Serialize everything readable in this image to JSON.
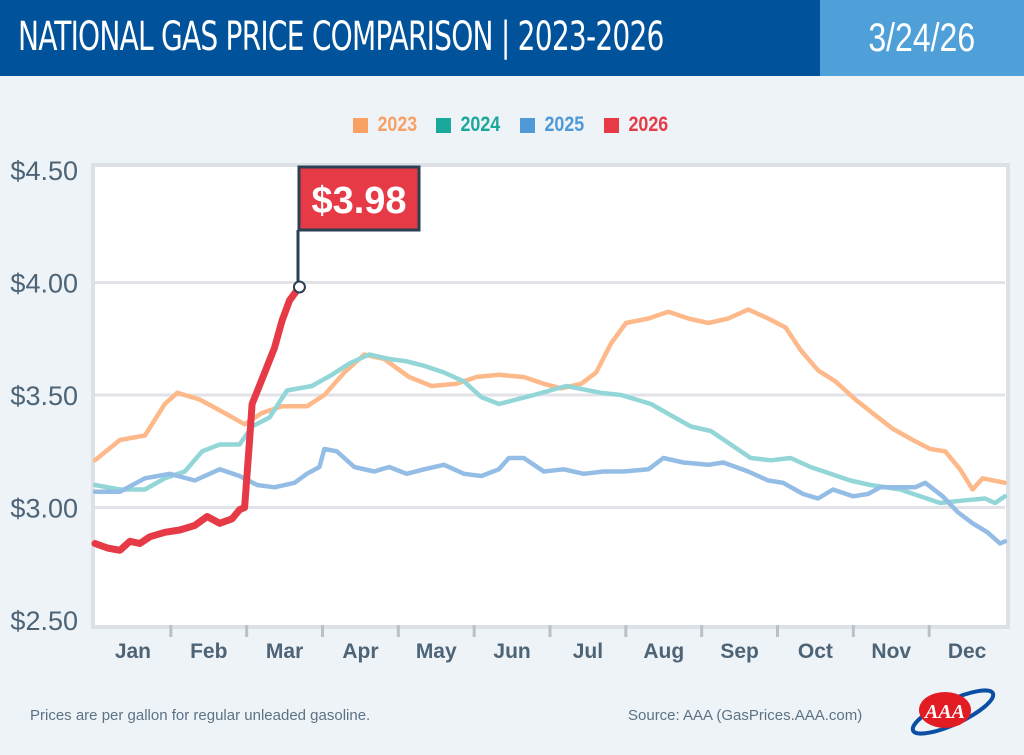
{
  "header": {
    "title": "NATIONAL GAS PRICE COMPARISON | 2023-2026",
    "date": "3/24/26"
  },
  "colors": {
    "header_bg": "#00529b",
    "date_bg": "#4fa0d9",
    "callout": "#e63b47"
  },
  "callout": {
    "label": "$3.98"
  },
  "footer": {
    "note": "Prices are per gallon for regular unleaded gasoline.",
    "source": "Source: AAA (GasPrices.AAA.com)",
    "logo_text": "AAA"
  },
  "chart_data": {
    "type": "line",
    "title": "",
    "xlabel": "",
    "ylabel": "",
    "ylim": [
      2.5,
      4.5
    ],
    "grid": true,
    "legend_placement": "top",
    "yticks": [
      "$4.50",
      "$4.00",
      "$3.50",
      "$3.00",
      "$2.50"
    ],
    "ytick_values": [
      4.5,
      4.0,
      3.5,
      3.0,
      2.5
    ],
    "months": [
      "Jan",
      "Feb",
      "Mar",
      "Apr",
      "May",
      "Jun",
      "Jul",
      "Aug",
      "Sep",
      "Oct",
      "Nov",
      "Dec"
    ],
    "x_unit": "day of year",
    "series": [
      {
        "name": "2023",
        "color": "#fdb98a",
        "legend_color": "#f9a064",
        "points": [
          [
            0,
            3.21
          ],
          [
            10,
            3.3
          ],
          [
            20,
            3.32
          ],
          [
            28,
            3.46
          ],
          [
            33,
            3.51
          ],
          [
            42,
            3.48
          ],
          [
            52,
            3.42
          ],
          [
            60,
            3.37
          ],
          [
            67,
            3.42
          ],
          [
            75,
            3.45
          ],
          [
            85,
            3.45
          ],
          [
            92,
            3.5
          ],
          [
            100,
            3.6
          ],
          [
            108,
            3.68
          ],
          [
            116,
            3.66
          ],
          [
            126,
            3.58
          ],
          [
            135,
            3.54
          ],
          [
            145,
            3.55
          ],
          [
            153,
            3.58
          ],
          [
            162,
            3.59
          ],
          [
            172,
            3.58
          ],
          [
            180,
            3.55
          ],
          [
            187,
            3.53
          ],
          [
            195,
            3.55
          ],
          [
            201,
            3.6
          ],
          [
            207,
            3.73
          ],
          [
            213,
            3.82
          ],
          [
            222,
            3.84
          ],
          [
            230,
            3.87
          ],
          [
            238,
            3.84
          ],
          [
            246,
            3.82
          ],
          [
            254,
            3.84
          ],
          [
            262,
            3.88
          ],
          [
            270,
            3.84
          ],
          [
            277,
            3.8
          ],
          [
            283,
            3.7
          ],
          [
            290,
            3.61
          ],
          [
            297,
            3.56
          ],
          [
            305,
            3.48
          ],
          [
            313,
            3.41
          ],
          [
            320,
            3.35
          ],
          [
            328,
            3.3
          ],
          [
            335,
            3.26
          ],
          [
            341,
            3.25
          ],
          [
            347,
            3.17
          ],
          [
            352,
            3.08
          ],
          [
            356,
            3.13
          ],
          [
            365,
            3.11
          ]
        ]
      },
      {
        "name": "2024",
        "color": "#93d6d8",
        "legend_color": "#1aa89c",
        "points": [
          [
            0,
            3.1
          ],
          [
            10,
            3.08
          ],
          [
            20,
            3.08
          ],
          [
            28,
            3.13
          ],
          [
            36,
            3.16
          ],
          [
            43,
            3.25
          ],
          [
            50,
            3.28
          ],
          [
            58,
            3.28
          ],
          [
            63,
            3.36
          ],
          [
            70,
            3.4
          ],
          [
            77,
            3.52
          ],
          [
            87,
            3.54
          ],
          [
            95,
            3.59
          ],
          [
            102,
            3.64
          ],
          [
            110,
            3.68
          ],
          [
            118,
            3.66
          ],
          [
            125,
            3.65
          ],
          [
            132,
            3.63
          ],
          [
            140,
            3.6
          ],
          [
            148,
            3.56
          ],
          [
            155,
            3.49
          ],
          [
            162,
            3.46
          ],
          [
            176,
            3.5
          ],
          [
            189,
            3.54
          ],
          [
            203,
            3.51
          ],
          [
            211,
            3.5
          ],
          [
            223,
            3.46
          ],
          [
            231,
            3.41
          ],
          [
            239,
            3.36
          ],
          [
            247,
            3.34
          ],
          [
            255,
            3.28
          ],
          [
            263,
            3.22
          ],
          [
            271,
            3.21
          ],
          [
            279,
            3.22
          ],
          [
            287,
            3.18
          ],
          [
            295,
            3.15
          ],
          [
            303,
            3.12
          ],
          [
            311,
            3.1
          ],
          [
            323,
            3.08
          ],
          [
            331,
            3.05
          ],
          [
            339,
            3.02
          ],
          [
            347,
            3.03
          ],
          [
            357,
            3.04
          ],
          [
            361,
            3.02
          ],
          [
            365,
            3.05
          ]
        ]
      },
      {
        "name": "2025",
        "color": "#94bde6",
        "legend_color": "#4f9ad6",
        "points": [
          [
            0,
            3.07
          ],
          [
            10,
            3.07
          ],
          [
            20,
            3.13
          ],
          [
            30,
            3.15
          ],
          [
            40,
            3.12
          ],
          [
            50,
            3.17
          ],
          [
            58,
            3.14
          ],
          [
            65,
            3.1
          ],
          [
            72,
            3.09
          ],
          [
            80,
            3.11
          ],
          [
            85,
            3.15
          ],
          [
            90,
            3.18
          ],
          [
            92,
            3.26
          ],
          [
            97,
            3.25
          ],
          [
            104,
            3.18
          ],
          [
            112,
            3.16
          ],
          [
            118,
            3.18
          ],
          [
            125,
            3.15
          ],
          [
            132,
            3.17
          ],
          [
            140,
            3.19
          ],
          [
            148,
            3.15
          ],
          [
            155,
            3.14
          ],
          [
            162,
            3.17
          ],
          [
            166,
            3.22
          ],
          [
            172,
            3.22
          ],
          [
            180,
            3.16
          ],
          [
            188,
            3.17
          ],
          [
            196,
            3.15
          ],
          [
            204,
            3.16
          ],
          [
            212,
            3.16
          ],
          [
            222,
            3.17
          ],
          [
            228,
            3.22
          ],
          [
            236,
            3.2
          ],
          [
            246,
            3.19
          ],
          [
            252,
            3.2
          ],
          [
            262,
            3.16
          ],
          [
            270,
            3.12
          ],
          [
            276,
            3.11
          ],
          [
            284,
            3.06
          ],
          [
            290,
            3.04
          ],
          [
            296,
            3.08
          ],
          [
            304,
            3.05
          ],
          [
            310,
            3.06
          ],
          [
            315,
            3.09
          ],
          [
            322,
            3.09
          ],
          [
            329,
            3.09
          ],
          [
            333,
            3.11
          ],
          [
            340,
            3.05
          ],
          [
            346,
            2.98
          ],
          [
            352,
            2.93
          ],
          [
            358,
            2.89
          ],
          [
            363,
            2.84
          ],
          [
            365,
            2.85
          ]
        ]
      },
      {
        "name": "2026",
        "color": "#e63b47",
        "legend_color": "#e63b47",
        "points": [
          [
            0,
            2.84
          ],
          [
            5,
            2.82
          ],
          [
            10,
            2.81
          ],
          [
            14,
            2.85
          ],
          [
            18,
            2.84
          ],
          [
            22,
            2.87
          ],
          [
            28,
            2.89
          ],
          [
            34,
            2.9
          ],
          [
            40,
            2.92
          ],
          [
            45,
            2.96
          ],
          [
            50,
            2.93
          ],
          [
            55,
            2.95
          ],
          [
            58,
            2.99
          ],
          [
            60,
            3.0
          ],
          [
            62,
            3.3
          ],
          [
            63,
            3.46
          ],
          [
            67,
            3.57
          ],
          [
            72,
            3.71
          ],
          [
            75,
            3.83
          ],
          [
            78,
            3.92
          ],
          [
            82,
            3.98
          ]
        ]
      }
    ]
  }
}
